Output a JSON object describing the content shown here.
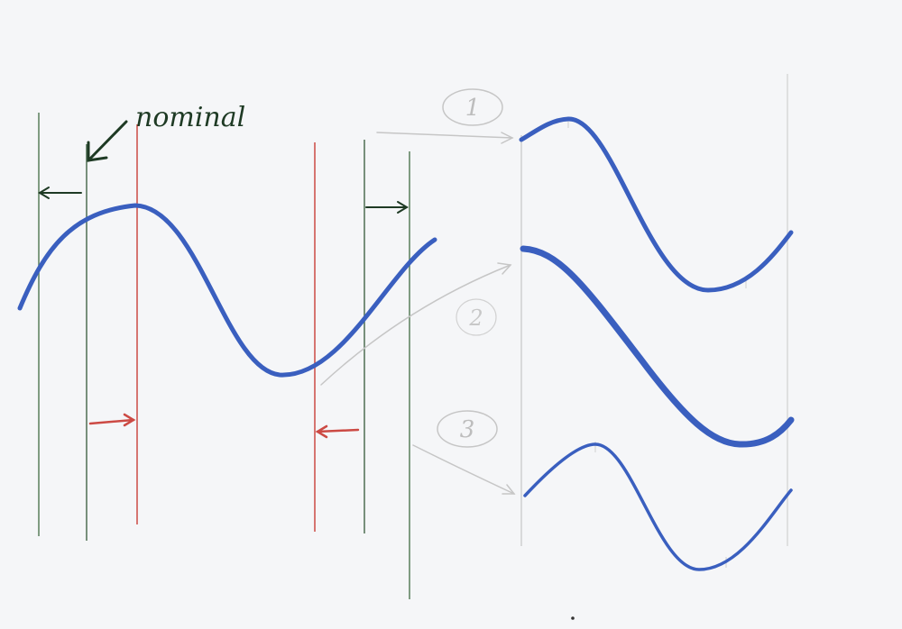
{
  "annotation": {
    "label": "nominal"
  },
  "step_markers": [
    "1",
    "2",
    "3"
  ],
  "colors": {
    "background": "#f5f6f8",
    "wave": "#3a5fbf",
    "nominal_boundary": "#4f6f52",
    "inner_boundary": "#cc4a44",
    "outer_boundary": "#5a7f5a",
    "guide": "#c6c6c6",
    "arrow_dark": "#1e3a24",
    "arrow_red": "#cc4a44"
  }
}
